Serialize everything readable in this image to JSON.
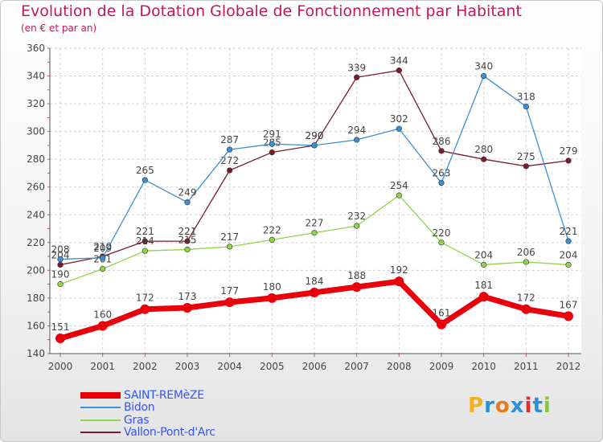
{
  "header": {
    "title": "Evolution de la Dotation Globale de Fonctionnement par Habitant",
    "subtitle": "(en € et par an)"
  },
  "chart_data": {
    "type": "line",
    "title": "Evolution de la Dotation Globale de Fonctionnement par Habitant",
    "subtitle": "(en € et par an)",
    "xlabel": "",
    "ylabel": "",
    "ylim": [
      140,
      360
    ],
    "yticks": [
      140,
      160,
      180,
      200,
      220,
      240,
      260,
      280,
      300,
      320,
      340,
      360
    ],
    "grid": true,
    "categories": [
      "2000",
      "2001",
      "2002",
      "2003",
      "2004",
      "2005",
      "2006",
      "2007",
      "2008",
      "2009",
      "2010",
      "2011",
      "2012"
    ],
    "series": [
      {
        "name": "SAINT-REMèZE",
        "color": "#e8000b",
        "values": [
          151,
          160,
          172,
          173,
          177,
          180,
          184,
          188,
          192,
          161,
          181,
          172,
          167
        ]
      },
      {
        "name": "Bidon",
        "color": "#3b8fd6",
        "values": [
          208,
          209,
          265,
          249,
          287,
          291,
          290,
          294,
          302,
          263,
          340,
          318,
          221
        ]
      },
      {
        "name": "Gras",
        "color": "#8fd44a",
        "values": [
          190,
          201,
          214,
          215,
          217,
          222,
          227,
          232,
          254,
          220,
          204,
          206,
          204
        ]
      },
      {
        "name": "Vallon-Pont-d'Arc",
        "color": "#7a1c2a",
        "values": [
          204,
          210,
          221,
          221,
          272,
          285,
          290,
          339,
          344,
          286,
          280,
          275,
          279
        ]
      }
    ],
    "legend_position": "bottom-left"
  },
  "logo": {
    "letters": [
      "P",
      "r",
      "o",
      "x",
      "i",
      "t",
      "i"
    ],
    "colors": [
      "#f0b020",
      "#2e8fd8",
      "#e87a1e",
      "#2e8fd8",
      "#e82a2a",
      "#2e8fd8",
      "#8bc34a"
    ]
  }
}
